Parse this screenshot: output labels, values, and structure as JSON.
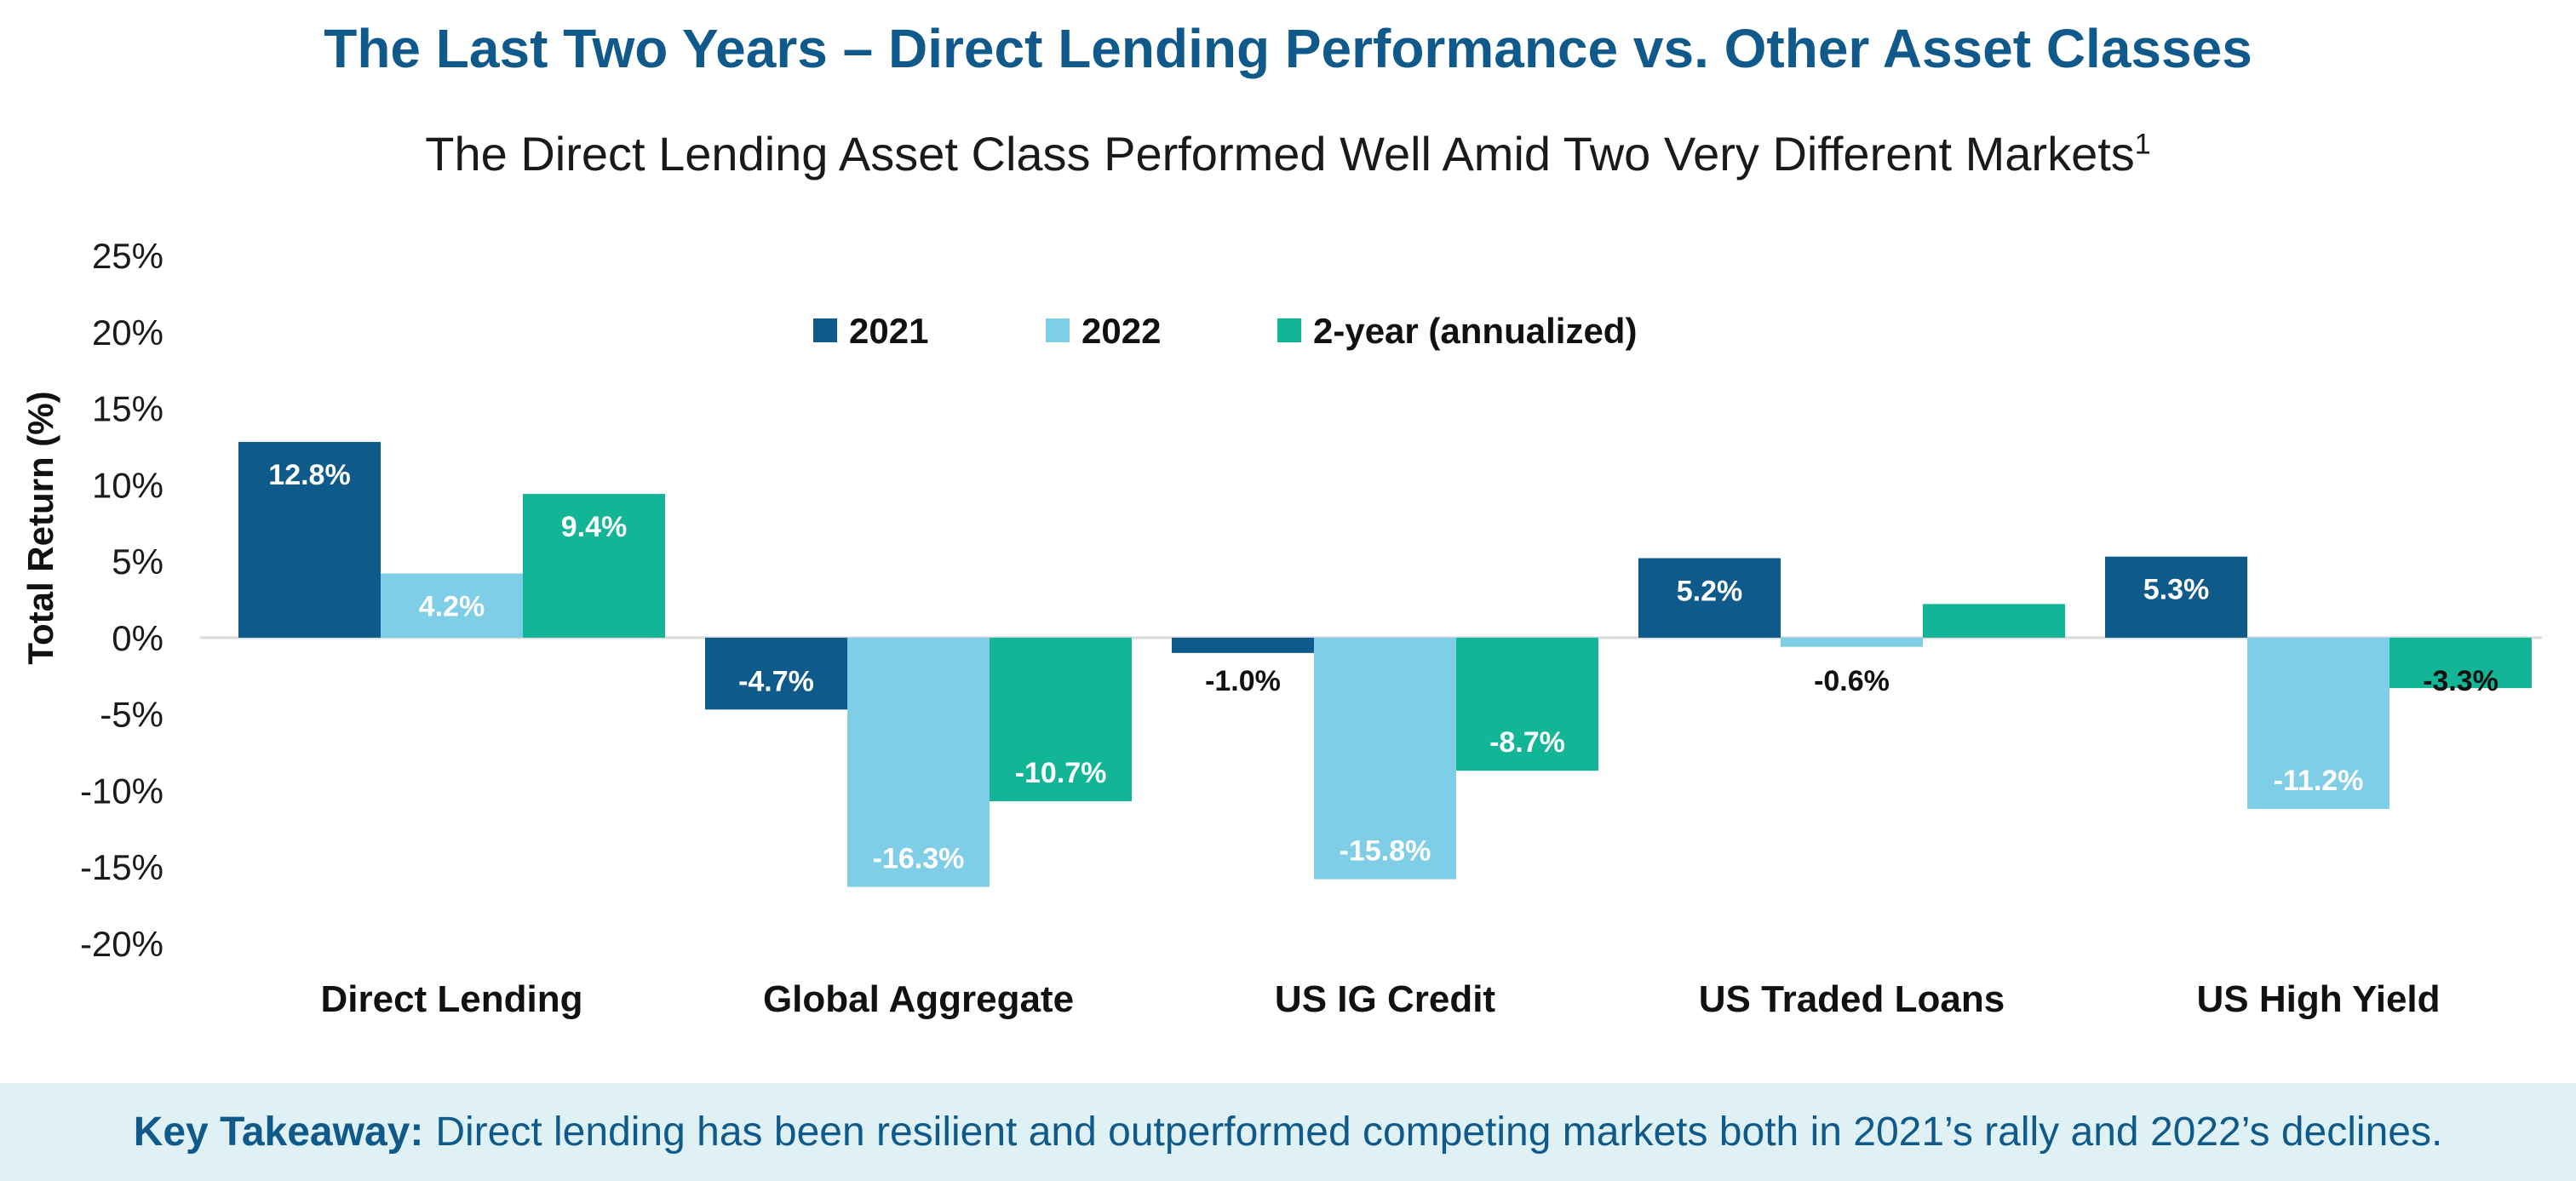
{
  "title": "The Last Two Years – Direct Lending Performance vs. Other Asset Classes",
  "subtitle": "The Direct Lending Asset Class Performed Well Amid Two Very Different Markets",
  "subtitle_footnote": "1",
  "takeaway": {
    "label": "Key Takeaway:",
    "text": "Direct lending has been resilient and outperformed competing markets both in 2021’s rally and 2022’s declines."
  },
  "colors": {
    "title": "#0F5A8A",
    "series_2021": "#0E5A8A",
    "series_2022": "#7DCEE6",
    "series_2yr": "#12B596",
    "takeaway_bg": "#E0F1F6"
  },
  "chart_data": {
    "type": "bar",
    "ylabel": "Total Return (%)",
    "ylim": [
      -20,
      25
    ],
    "yticks": [
      "25%",
      "20%",
      "15%",
      "10%",
      "5%",
      "0%",
      "-5%",
      "-10%",
      "-15%",
      "-20%"
    ],
    "ytick_values": [
      25,
      20,
      15,
      10,
      5,
      0,
      -5,
      -10,
      -15,
      -20
    ],
    "legend_position": "top-center",
    "grid": false,
    "categories": [
      "Direct Lending",
      "Global Aggregate",
      "US IG Credit",
      "US Traded Loans",
      "US High Yield"
    ],
    "series": [
      {
        "name": "2021",
        "values": [
          12.8,
          -4.7,
          -1.0,
          5.2,
          5.3
        ],
        "labels": [
          "12.8%",
          "-4.7%",
          "-1.0%",
          "5.2%",
          "5.3%"
        ]
      },
      {
        "name": "2022",
        "values": [
          4.2,
          -16.3,
          -15.8,
          -0.6,
          -11.2
        ],
        "labels": [
          "4.2%",
          "-16.3%",
          "-15.8%",
          "-0.6%",
          "-11.2%"
        ]
      },
      {
        "name": "2-year (annualized)",
        "values": [
          9.4,
          -10.7,
          -8.7,
          2.2,
          -3.3
        ],
        "labels": [
          "9.4%",
          "-10.7%",
          "-8.7%",
          "",
          "-3.3%"
        ]
      }
    ]
  }
}
